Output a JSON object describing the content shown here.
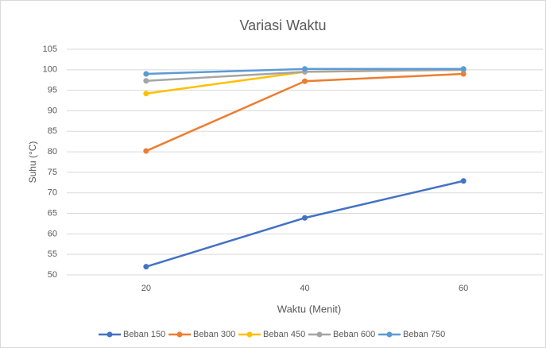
{
  "chart_data": {
    "type": "line",
    "title": "Variasi Waktu",
    "x_label": "Waktu (Menit)",
    "y_label": "Suhu (°C)",
    "categories": [
      "20",
      "40",
      "60"
    ],
    "series": [
      {
        "name": "Beban 150",
        "color": "#4472c4",
        "values": [
          52,
          63.9,
          72.9
        ]
      },
      {
        "name": "Beban 300",
        "color": "#ed7d31",
        "values": [
          80.2,
          97.2,
          99
        ]
      },
      {
        "name": "Beban 450",
        "color": "#ffc000",
        "values": [
          94.2,
          99.5,
          100
        ]
      },
      {
        "name": "Beban 600",
        "color": "#a5a5a5",
        "values": [
          97.3,
          99.5,
          100
        ]
      },
      {
        "name": "Beban 750",
        "color": "#5b9bd5",
        "values": [
          99,
          100.2,
          100.2
        ]
      }
    ],
    "ylim": [
      50,
      105
    ],
    "yticks": [
      50,
      55,
      60,
      65,
      70,
      75,
      80,
      85,
      90,
      95,
      100,
      105
    ],
    "grid": true,
    "legend": "bottom"
  }
}
